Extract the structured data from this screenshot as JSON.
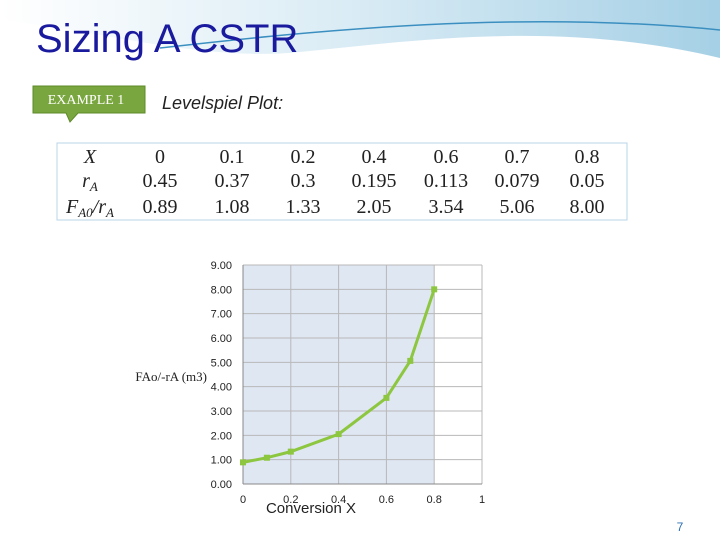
{
  "title": "Sizing A CSTR",
  "example_label": "EXAMPLE 1",
  "subtitle": "Levelspiel Plot:",
  "table": {
    "rows": [
      {
        "label": [
          "X"
        ],
        "cells": [
          "0",
          "0.1",
          "0.2",
          "0.4",
          "0.6",
          "0.7",
          "0.8"
        ]
      },
      {
        "label": [
          "r",
          "A"
        ],
        "cells": [
          "0.45",
          "0.37",
          "0.3",
          "0.195",
          "0.113",
          "0.079",
          "0.05"
        ]
      },
      {
        "label": [
          "F",
          "A0",
          "/r",
          "A"
        ],
        "cells": [
          "0.89",
          "1.08",
          "1.33",
          "2.05",
          "3.54",
          "5.06",
          "8.00"
        ]
      }
    ]
  },
  "page_number": "7",
  "chart_data": {
    "type": "line",
    "x_label": "Conversion X",
    "y_label": "FAo/-rA (m3)",
    "x": [
      0,
      0.1,
      0.2,
      0.4,
      0.6,
      0.7,
      0.8
    ],
    "values": [
      0.89,
      1.08,
      1.33,
      2.05,
      3.54,
      5.06,
      8.0
    ],
    "color": "#8dc63f",
    "xlim": [
      0,
      1
    ],
    "xticks": [
      0,
      0.2,
      0.4,
      0.6,
      0.8,
      1
    ],
    "ylim": [
      0,
      9
    ],
    "yticks": [
      {
        "value": 0,
        "label": "0.00"
      },
      {
        "value": 1,
        "label": "1.00"
      },
      {
        "value": 2,
        "label": "2.00"
      },
      {
        "value": 3,
        "label": "3.00"
      },
      {
        "value": 4,
        "label": "4.00"
      },
      {
        "value": 5,
        "label": "5.00"
      },
      {
        "value": 6,
        "label": "6.00"
      },
      {
        "value": 7,
        "label": "7.00"
      },
      {
        "value": 8,
        "label": "8.00"
      },
      {
        "value": 9,
        "label": "9.00"
      }
    ],
    "grid": true
  }
}
